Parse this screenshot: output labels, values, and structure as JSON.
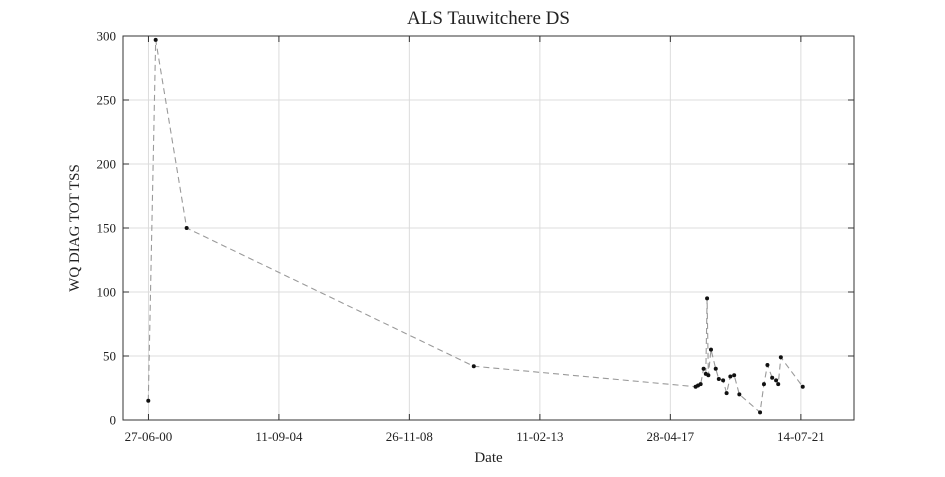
{
  "chart_data": {
    "type": "line",
    "title": "ALS Tauwitchere DS",
    "xlabel": "Date",
    "ylabel": "WQ DIAG TOT TSS",
    "x_type": "date",
    "xlim": [
      "1999-09-01",
      "2023-04-01"
    ],
    "ylim": [
      0,
      300
    ],
    "yticks": [
      0,
      50,
      100,
      150,
      200,
      250,
      300
    ],
    "xticks": [
      "2000-06-27",
      "2004-09-11",
      "2008-11-26",
      "2013-02-11",
      "2017-04-28",
      "2021-07-14"
    ],
    "xtick_labels": [
      "27-06-00",
      "11-09-04",
      "26-11-08",
      "11-02-13",
      "28-04-17",
      "14-07-21"
    ],
    "grid": true,
    "line_style": "dashed",
    "colors": {
      "line": "#9a9a9a",
      "marker": "#111111",
      "grid": "#dcdcdc",
      "axes": "#333333"
    },
    "series": [
      {
        "values": [
          {
            "x": "2000-06-25",
            "y": 15
          },
          {
            "x": "2000-09-20",
            "y": 297
          },
          {
            "x": "2001-09-20",
            "y": 150
          },
          {
            "x": "2010-12-25",
            "y": 42
          },
          {
            "x": "2018-02-20",
            "y": 26
          },
          {
            "x": "2018-03-20",
            "y": 27
          },
          {
            "x": "2018-04-20",
            "y": 28
          },
          {
            "x": "2018-05-25",
            "y": 40
          },
          {
            "x": "2018-06-20",
            "y": 36
          },
          {
            "x": "2018-07-05",
            "y": 95
          },
          {
            "x": "2018-07-20",
            "y": 35
          },
          {
            "x": "2018-08-20",
            "y": 55
          },
          {
            "x": "2018-10-15",
            "y": 40
          },
          {
            "x": "2018-11-20",
            "y": 32
          },
          {
            "x": "2019-01-10",
            "y": 31
          },
          {
            "x": "2019-02-20",
            "y": 21
          },
          {
            "x": "2019-04-05",
            "y": 34
          },
          {
            "x": "2019-05-20",
            "y": 35
          },
          {
            "x": "2019-07-20",
            "y": 20
          },
          {
            "x": "2020-03-20",
            "y": 6
          },
          {
            "x": "2020-05-05",
            "y": 28
          },
          {
            "x": "2020-06-15",
            "y": 43
          },
          {
            "x": "2020-08-10",
            "y": 33
          },
          {
            "x": "2020-09-25",
            "y": 31
          },
          {
            "x": "2020-10-20",
            "y": 28
          },
          {
            "x": "2020-11-20",
            "y": 49
          },
          {
            "x": "2021-08-05",
            "y": 26
          }
        ]
      }
    ]
  }
}
